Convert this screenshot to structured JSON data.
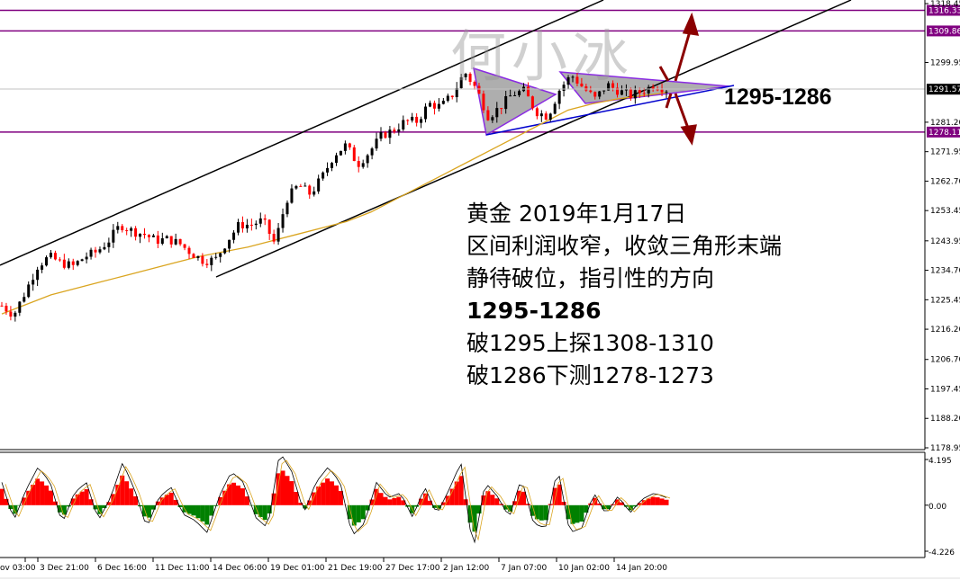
{
  "watermark": "何小冰",
  "annotation": {
    "range_label": "1295-1286",
    "lines": [
      "黄金 2019年1月17日",
      "区间利润收窄，收敛三角形末端",
      "静待破位，指引性的方向",
      "1295-1286",
      "破1295上探1308-1310",
      "破1286下测1278-1273"
    ]
  },
  "chart_data": {
    "type": "candlestick",
    "symbol_current_price": "1291.57",
    "price_axis": {
      "ylim": [
        1178.95,
        1318.45
      ],
      "ticks": [
        "1318.45",
        "1299.95",
        "1281.20",
        "1271.95",
        "1262.70",
        "1253.45",
        "1243.95",
        "1234.70",
        "1225.45",
        "1216.20",
        "1206.70",
        "1197.45",
        "1188.20",
        "1178.95"
      ]
    },
    "horizontal_levels": [
      {
        "label": "1316.33",
        "value": 1316.33,
        "color": "#800080"
      },
      {
        "label": "1309.86",
        "value": 1309.86,
        "color": "#800080"
      },
      {
        "label": "1278.11",
        "value": 1278.11,
        "color": "#800080"
      }
    ],
    "time_axis": [
      "ov 03:00",
      "3 Dec 21:00",
      "6 Dec 16:00",
      "11 Dec 11:00",
      "14 Dec 06:00",
      "19 Dec 01:00",
      "21 Dec 19:00",
      "27 Dec 17:00",
      "2 Jan 12:00",
      "7 Jan 07:00",
      "10 Jan 02:00",
      "14 Jan 20:00"
    ],
    "closes": [
      1223.6,
      1220.7,
      1228,
      1236,
      1239,
      1237,
      1236,
      1239,
      1240.5,
      1244,
      1249,
      1247,
      1246,
      1244,
      1244.5,
      1243,
      1240,
      1237.7,
      1238,
      1244,
      1249,
      1249,
      1250.4,
      1243,
      1257,
      1261.5,
      1258.6,
      1264,
      1271,
      1274,
      1268,
      1272,
      1277,
      1278.7,
      1281.5,
      1281.5,
      1287,
      1286,
      1290,
      1297,
      1291.5,
      1283,
      1286,
      1290,
      1291,
      1284.6,
      1283,
      1291.5,
      1296,
      1292,
      1288.5,
      1293,
      1291,
      1289.5,
      1291,
      1293,
      1291.57
    ],
    "moving_average": [
      1221,
      1224,
      1227,
      1229,
      1231,
      1233,
      1235,
      1237,
      1239,
      1240.5,
      1242,
      1244,
      1246,
      1248,
      1250,
      1253,
      1257,
      1261,
      1265,
      1269,
      1273,
      1277,
      1281,
      1285,
      1287,
      1288.5,
      1289.5,
      1290.5
    ],
    "oscillator": {
      "ylim": [
        -4.226,
        4.195
      ],
      "ticks": [
        "4.195",
        "0.00",
        "-4.226"
      ],
      "values": [
        1.5,
        -1,
        1,
        2.5,
        1.5,
        -1.2,
        0.8,
        1.5,
        -1,
        0.5,
        2.8,
        1,
        -1.5,
        0.5,
        1.2,
        -0.6,
        -1,
        -1.8,
        0.6,
        2.2,
        1.5,
        -0.8,
        -1.5,
        3.5,
        2.2,
        -0.5,
        1.5,
        2.5,
        1.5,
        -2,
        -1.2,
        1.5,
        0.5,
        0.8,
        -0.8,
        1.2,
        -0.6,
        1,
        2.8,
        -3,
        1.5,
        0.6,
        -0.8,
        1.8,
        -1.2,
        -1.5,
        2.5,
        -1.8,
        -1.5,
        0.8,
        -0.6,
        0.6,
        -0.5,
        0.4,
        0.8,
        0.5
      ],
      "colors": {
        "up": "#ff0000",
        "down": "#008000"
      }
    },
    "colors": {
      "bull": "#000000",
      "bear": "#ff0000",
      "ma": "#daa520",
      "levels": "#800080",
      "triangle": "#808080",
      "arrows": "#8b0000",
      "support": "#0000cd"
    }
  }
}
